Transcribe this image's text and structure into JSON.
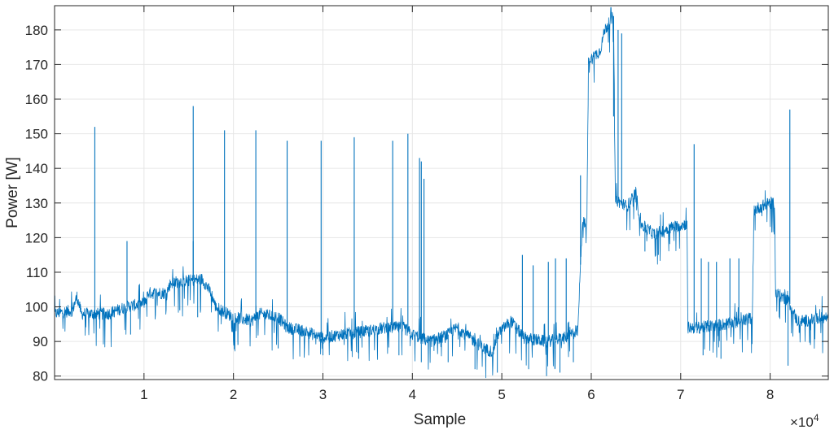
{
  "chart_data": {
    "type": "line",
    "title": "",
    "xlabel": "Sample",
    "ylabel": "Power [W]",
    "x_exponent_label": "×10",
    "x_exponent_power": "4",
    "xlim": [
      0,
      86500
    ],
    "ylim": [
      79,
      187
    ],
    "xticks": [
      10000,
      20000,
      30000,
      40000,
      50000,
      60000,
      70000,
      80000
    ],
    "xtick_labels": [
      "1",
      "2",
      "3",
      "4",
      "5",
      "6",
      "7",
      "8"
    ],
    "yticks": [
      80,
      90,
      100,
      110,
      120,
      130,
      140,
      150,
      160,
      170,
      180
    ],
    "ytick_labels": [
      "80",
      "90",
      "100",
      "110",
      "120",
      "130",
      "140",
      "150",
      "160",
      "170",
      "180"
    ],
    "grid": true,
    "series_color": "#0072BD",
    "series": [
      {
        "name": "",
        "baseline": [
          [
            0,
            98
          ],
          [
            2000,
            99
          ],
          [
            2500,
            103
          ],
          [
            3000,
            98
          ],
          [
            6000,
            98
          ],
          [
            8000,
            100
          ],
          [
            10000,
            101
          ],
          [
            10500,
            104
          ],
          [
            12500,
            104
          ],
          [
            13000,
            107
          ],
          [
            16500,
            108
          ],
          [
            17500,
            104
          ],
          [
            18000,
            100
          ],
          [
            20000,
            97
          ],
          [
            22000,
            96
          ],
          [
            23000,
            98
          ],
          [
            25000,
            97
          ],
          [
            26000,
            94
          ],
          [
            28000,
            93
          ],
          [
            30000,
            91
          ],
          [
            32000,
            92
          ],
          [
            35000,
            93
          ],
          [
            37000,
            94
          ],
          [
            39000,
            94
          ],
          [
            40000,
            92
          ],
          [
            42000,
            90
          ],
          [
            44000,
            92
          ],
          [
            45000,
            94
          ],
          [
            47000,
            90
          ],
          [
            48000,
            88
          ],
          [
            49000,
            87
          ],
          [
            49500,
            92
          ],
          [
            51000,
            96
          ],
          [
            52500,
            91
          ],
          [
            55000,
            90
          ],
          [
            57000,
            91
          ],
          [
            58500,
            93
          ],
          [
            59000,
            125
          ],
          [
            59500,
            123
          ],
          [
            59700,
            171
          ],
          [
            61000,
            174
          ],
          [
            61500,
            180
          ],
          [
            62500,
            184
          ],
          [
            62700,
            131
          ],
          [
            64000,
            129
          ],
          [
            65000,
            133
          ],
          [
            65500,
            124
          ],
          [
            67000,
            121
          ],
          [
            69000,
            123
          ],
          [
            70700,
            124
          ],
          [
            70800,
            94
          ],
          [
            72000,
            94
          ],
          [
            75000,
            95
          ],
          [
            77000,
            96
          ],
          [
            78000,
            97
          ],
          [
            78200,
            128
          ],
          [
            79000,
            129
          ],
          [
            80000,
            130
          ],
          [
            80500,
            130
          ],
          [
            80600,
            104
          ],
          [
            82000,
            102
          ],
          [
            83000,
            96
          ],
          [
            84000,
            96
          ],
          [
            86500,
            97
          ]
        ],
        "spikes": [
          [
            4500,
            152
          ],
          [
            8100,
            119
          ],
          [
            15500,
            158
          ],
          [
            15500,
            119
          ],
          [
            19000,
            151
          ],
          [
            22500,
            151
          ],
          [
            26000,
            148
          ],
          [
            29800,
            148
          ],
          [
            33500,
            149
          ],
          [
            37800,
            148
          ],
          [
            39500,
            150
          ],
          [
            40800,
            143
          ],
          [
            41000,
            142
          ],
          [
            41300,
            137
          ],
          [
            52300,
            115
          ],
          [
            53500,
            112
          ],
          [
            55200,
            113
          ],
          [
            56000,
            114
          ],
          [
            57200,
            114
          ],
          [
            58800,
            138
          ],
          [
            62500,
            155
          ],
          [
            63000,
            180
          ],
          [
            63400,
            179
          ],
          [
            71500,
            147
          ],
          [
            72300,
            114
          ],
          [
            73100,
            113
          ],
          [
            74000,
            113
          ],
          [
            75500,
            114
          ],
          [
            76500,
            114
          ],
          [
            82200,
            157
          ]
        ],
        "dips": [
          [
            8500,
            92
          ],
          [
            14000,
            99
          ],
          [
            16000,
            97
          ],
          [
            20500,
            89
          ],
          [
            25000,
            88
          ],
          [
            30000,
            86
          ],
          [
            34000,
            85
          ],
          [
            38500,
            86
          ],
          [
            41000,
            84
          ],
          [
            44000,
            84
          ],
          [
            47000,
            82
          ],
          [
            49500,
            81
          ],
          [
            53000,
            82
          ],
          [
            55000,
            80
          ],
          [
            56500,
            81
          ],
          [
            58000,
            84
          ],
          [
            66000,
            116
          ],
          [
            67500,
            115
          ],
          [
            72500,
            86
          ],
          [
            74500,
            85
          ],
          [
            82000,
            83
          ],
          [
            84500,
            89
          ]
        ]
      }
    ]
  }
}
